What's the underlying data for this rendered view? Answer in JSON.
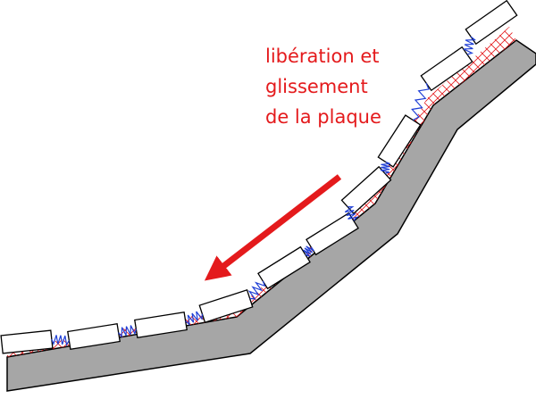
{
  "annotation": {
    "lines": [
      "libération et",
      "glissement",
      "de la plaque"
    ]
  }
}
